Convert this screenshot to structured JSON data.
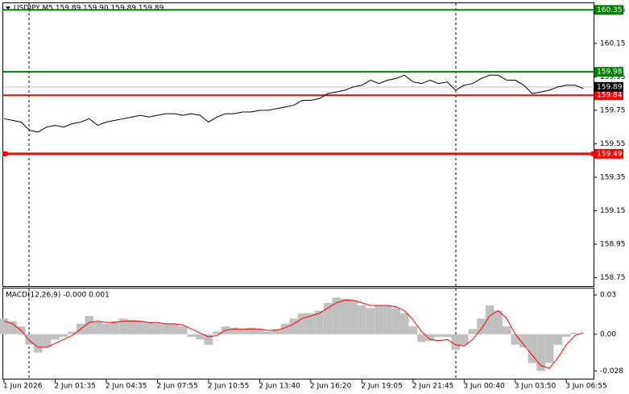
{
  "chart_data": [
    {
      "type": "line",
      "title": "USDJPY,M5  159.89 159.90 159.89 159.89",
      "color": "#000000",
      "categories": [
        "1 Jun 2026",
        null,
        null,
        null,
        null,
        null,
        "2 Jun 01:35",
        null,
        null,
        null,
        null,
        null,
        "2 Jun 04:35",
        null,
        null,
        null,
        null,
        null,
        "2 Jun 07:55",
        null,
        null,
        null,
        null,
        null,
        "2 Jun 10:55",
        null,
        null,
        null,
        null,
        null,
        "2 Jun 13:40",
        null,
        null,
        null,
        null,
        null,
        "2 Jun 16:20",
        null,
        null,
        null,
        null,
        null,
        "2 Jun 19:05",
        null,
        null,
        null,
        null,
        null,
        "2 Jun 21:45",
        null,
        null,
        null,
        null,
        null,
        "3 Jun 00:40",
        null,
        null,
        null,
        null,
        null,
        "3 Jun 03:50",
        null,
        null,
        null,
        null,
        null,
        "3 Jun 06:55",
        null,
        null
      ],
      "values": [
        159.7,
        159.69,
        159.68,
        159.63,
        159.62,
        159.65,
        159.66,
        159.65,
        159.67,
        159.68,
        159.7,
        159.66,
        159.68,
        159.69,
        159.7,
        159.71,
        159.72,
        159.71,
        159.72,
        159.73,
        159.73,
        159.72,
        159.73,
        159.72,
        159.68,
        159.71,
        159.73,
        159.73,
        159.74,
        159.74,
        159.75,
        159.75,
        159.76,
        159.77,
        159.78,
        159.81,
        159.81,
        159.82,
        159.85,
        159.86,
        159.87,
        159.89,
        159.9,
        159.93,
        159.91,
        159.93,
        159.94,
        159.96,
        159.92,
        159.91,
        159.93,
        159.91,
        159.92,
        159.87,
        159.9,
        159.91,
        159.94,
        159.96,
        159.96,
        159.93,
        159.93,
        159.9,
        159.85,
        159.86,
        159.87,
        159.89,
        159.9,
        159.9,
        159.88
      ],
      "ylim": [
        158.7,
        160.39
      ],
      "yticks": [
        158.75,
        158.95,
        159.15,
        159.35,
        159.55,
        159.75,
        159.95,
        160.15,
        160.35
      ],
      "levels": [
        {
          "value": 160.35,
          "color": "#008000"
        },
        {
          "value": 159.98,
          "color": "#008000"
        },
        {
          "value": 159.84,
          "color": "#ff0000"
        },
        {
          "value": 159.49,
          "color": "#ff0000"
        }
      ],
      "last_price": 159.89
    },
    {
      "type": "macd",
      "title": "MACD(12,26,9) -0.000 0.001",
      "series": [
        {
          "color": "#c0c0c0",
          "values": [
            0.012,
            0.01,
            0.006,
            -0.008,
            -0.014,
            -0.01,
            -0.004,
            -0.002,
            0.002,
            0.008,
            0.014,
            0.01,
            0.008,
            0.01,
            0.012,
            0.011,
            0.01,
            0.009,
            0.008,
            0.008,
            0.008,
            0.006,
            -0.002,
            -0.004,
            -0.008,
            0.002,
            0.006,
            0.005,
            0.004,
            0.005,
            0.004,
            0.002,
            0.004,
            0.008,
            0.012,
            0.016,
            0.016,
            0.018,
            0.024,
            0.028,
            0.027,
            0.026,
            0.022,
            0.02,
            0.022,
            0.022,
            0.02,
            0.016,
            0.006,
            -0.006,
            -0.005,
            -0.002,
            -0.002,
            -0.012,
            -0.008,
            0.004,
            0.012,
            0.022,
            0.018,
            0.006,
            -0.008,
            -0.01,
            -0.022,
            -0.028,
            -0.022,
            -0.008,
            -0.002,
            0.001,
            0.0
          ]
        },
        {
          "color": "#ff0000",
          "values": [
            0.01,
            0.008,
            0.003,
            -0.005,
            -0.01,
            -0.01,
            -0.007,
            -0.004,
            -0.001,
            0.004,
            0.009,
            0.01,
            0.009,
            0.009,
            0.01,
            0.01,
            0.01,
            0.009,
            0.009,
            0.008,
            0.008,
            0.007,
            0.004,
            0.001,
            -0.002,
            -0.001,
            0.003,
            0.004,
            0.004,
            0.004,
            0.004,
            0.003,
            0.003,
            0.005,
            0.008,
            0.012,
            0.014,
            0.016,
            0.02,
            0.024,
            0.026,
            0.026,
            0.024,
            0.022,
            0.022,
            0.022,
            0.021,
            0.018,
            0.011,
            0.002,
            -0.004,
            -0.005,
            -0.004,
            -0.008,
            -0.009,
            -0.004,
            0.004,
            0.014,
            0.018,
            0.012,
            0.0,
            -0.008,
            -0.016,
            -0.024,
            -0.026,
            -0.018,
            -0.008,
            -0.001,
            0.001
          ]
        }
      ],
      "ylim": [
        -0.034,
        0.035
      ],
      "yticks": [
        -0.028,
        {
          "value": 0.0,
          "label": "0.00"
        },
        0.03
      ]
    }
  ]
}
